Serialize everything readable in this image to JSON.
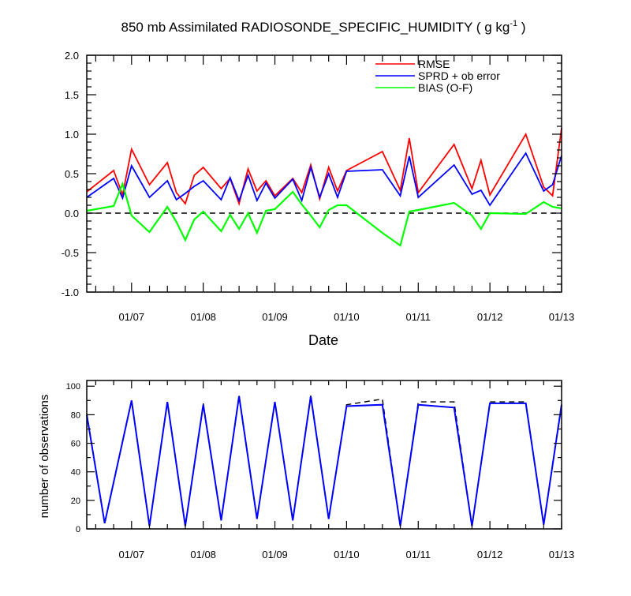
{
  "figure": {
    "title_main": "850 mb Assimilated RADIOSONDE_SPECIFIC_HUMIDITY ( g kg",
    "title_sup": "-1",
    "title_end": " )"
  },
  "chart_data": [
    {
      "type": "line",
      "title": "850 mb Assimilated RADIOSONDE_SPECIFIC_HUMIDITY ( g kg-1 )",
      "xlabel": "Date",
      "ylabel": "",
      "xlim": [
        "01/06 09:00",
        "01/13 00:00"
      ],
      "ylim": [
        -1.0,
        2.0
      ],
      "yticks": [
        "-1.0",
        "-0.5",
        "0.0",
        "0.5",
        "1.0",
        "1.5",
        "2.0"
      ],
      "xticks": [
        "01/07",
        "01/08",
        "01/09",
        "01/10",
        "01/11",
        "01/12",
        "01/13"
      ],
      "reference_line": 0.0,
      "legend_position": "top-right",
      "colors": {
        "RMSE": "#ff0000",
        "SPRD + ob error": "#0000ff",
        "BIAS (O-F)": "#00ff00"
      },
      "x": [
        "01/06 09:00",
        "01/06 18:00",
        "01/06 21:00",
        "01/07 00:00",
        "01/07 06:00",
        "01/07 12:00",
        "01/07 15:00",
        "01/07 18:00",
        "01/07 21:00",
        "01/08 00:00",
        "01/08 06:00",
        "01/08 09:00",
        "01/08 12:00",
        "01/08 15:00",
        "01/08 18:00",
        "01/08 21:00",
        "01/09 00:00",
        "01/09 06:00",
        "01/09 09:00",
        "01/09 12:00",
        "01/09 15:00",
        "01/09 18:00",
        "01/09 21:00",
        "01/10 00:00",
        "01/10 12:00",
        "01/10 18:00",
        "01/10 21:00",
        "01/11 00:00",
        "01/11 12:00",
        "01/11 18:00",
        "01/11 21:00",
        "01/12 00:00",
        "01/12 12:00",
        "01/12 18:00",
        "01/12 21:00",
        "01/13 00:00"
      ],
      "series": [
        {
          "name": "RMSE",
          "values": [
            0.27,
            0.54,
            0.23,
            0.81,
            0.36,
            0.64,
            0.26,
            0.12,
            0.48,
            0.58,
            0.31,
            0.44,
            0.12,
            0.56,
            0.28,
            0.41,
            0.22,
            0.44,
            0.26,
            0.61,
            0.18,
            0.58,
            0.28,
            0.54,
            0.78,
            0.29,
            0.95,
            0.26,
            0.87,
            0.31,
            0.67,
            0.23,
            1.0,
            0.33,
            0.22,
            1.08
          ]
        },
        {
          "name": "SPRD + ob error",
          "values": [
            0.2,
            0.44,
            0.19,
            0.6,
            0.2,
            0.41,
            0.17,
            0.25,
            0.34,
            0.41,
            0.17,
            0.45,
            0.16,
            0.48,
            0.16,
            0.38,
            0.19,
            0.43,
            0.16,
            0.58,
            0.2,
            0.5,
            0.2,
            0.53,
            0.55,
            0.22,
            0.72,
            0.2,
            0.61,
            0.24,
            0.29,
            0.1,
            0.76,
            0.28,
            0.36,
            0.73
          ]
        },
        {
          "name": "BIAS (O-F)",
          "values": [
            0.03,
            0.09,
            0.37,
            -0.03,
            -0.24,
            0.08,
            -0.11,
            -0.34,
            -0.08,
            0.02,
            -0.23,
            -0.02,
            -0.2,
            0.0,
            -0.25,
            0.03,
            0.05,
            0.27,
            0.11,
            -0.03,
            -0.18,
            0.04,
            0.1,
            0.1,
            -0.25,
            -0.41,
            0.02,
            0.04,
            0.13,
            -0.03,
            -0.2,
            0.0,
            -0.01,
            0.14,
            0.08,
            0.06
          ]
        }
      ]
    },
    {
      "type": "line",
      "ylabel": "number of observations",
      "xlim": [
        "01/06 09:00",
        "01/13 00:00"
      ],
      "ylim": [
        0,
        104
      ],
      "yticks": [
        "0",
        "20",
        "40",
        "60",
        "80",
        "100"
      ],
      "xticks": [
        "01/07",
        "01/08",
        "01/09",
        "01/10",
        "01/11",
        "01/12",
        "01/13"
      ],
      "x": [
        "01/06 09:00",
        "01/06 15:00",
        "01/07 00:00",
        "01/07 06:00",
        "01/07 12:00",
        "01/07 18:00",
        "01/08 00:00",
        "01/08 06:00",
        "01/08 12:00",
        "01/08 18:00",
        "01/09 00:00",
        "01/09 06:00",
        "01/09 12:00",
        "01/09 18:00",
        "01/10 00:00",
        "01/10 12:00",
        "01/10 18:00",
        "01/11 00:00",
        "01/11 12:00",
        "01/11 18:00",
        "01/12 00:00",
        "01/12 12:00",
        "01/12 18:00",
        "01/13 00:00"
      ],
      "series": [
        {
          "name": "",
          "color": "#0000ff",
          "style": "solid",
          "values": [
            80,
            4,
            90,
            2,
            89,
            2,
            87,
            6,
            93,
            7,
            89,
            6,
            93,
            7,
            86,
            87,
            2,
            87,
            85,
            2,
            88,
            88,
            3,
            87
          ]
        },
        {
          "name": "",
          "color": "#000000",
          "style": "dashed",
          "values": [
            81,
            4,
            90,
            2,
            89,
            2,
            88,
            6,
            94,
            7,
            89,
            6,
            94,
            7,
            87,
            91,
            2,
            89,
            89,
            2,
            89,
            89,
            3,
            88
          ]
        }
      ]
    }
  ]
}
